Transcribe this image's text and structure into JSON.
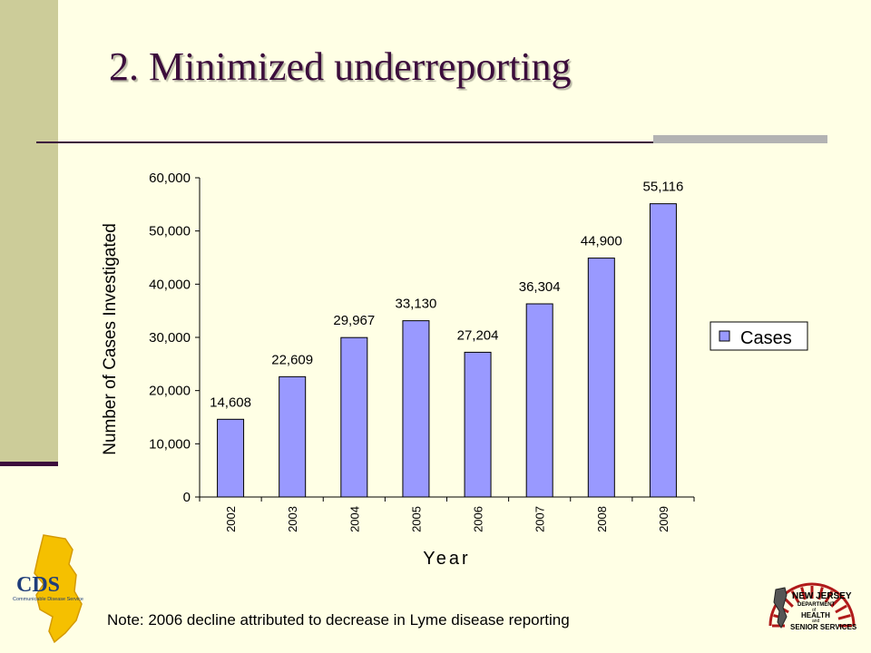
{
  "slide": {
    "title": "2. Minimized underreporting",
    "note": "Note: 2006 decline attributed to decrease in Lyme disease reporting",
    "colors": {
      "accent": "#3c0d3c",
      "sidebar": "#cccc99",
      "background": "#ffffe5",
      "bar": "#9999ff"
    }
  },
  "logos": {
    "cds": {
      "text": "CDS",
      "subtitle": "Communicable Disease Service",
      "icon": "new-jersey-map-icon"
    },
    "nj": {
      "line1": "NEW JERSEY",
      "line2": "DEPARTMENT",
      "line3": "of",
      "line4": "HEALTH",
      "line5": "and",
      "line6": "SENIOR SERVICES",
      "icon": "sunburst-seal-icon"
    }
  },
  "chart_data": {
    "type": "bar",
    "categories": [
      "2002",
      "2003",
      "2004",
      "2005",
      "2006",
      "2007",
      "2008",
      "2009"
    ],
    "series": [
      {
        "name": "Cases",
        "values": [
          14608,
          22609,
          29967,
          33130,
          27204,
          36304,
          44900,
          55116
        ]
      }
    ],
    "data_labels": [
      "14,608",
      "22,609",
      "29,967",
      "33,130",
      "27,204",
      "36,304",
      "44,900",
      "55,116"
    ],
    "title": "",
    "xlabel": "Year",
    "ylabel": "Number of Cases Investigated",
    "ylim": [
      0,
      60000
    ],
    "yticks": [
      0,
      10000,
      20000,
      30000,
      40000,
      50000,
      60000
    ],
    "ytick_labels": [
      "0",
      "10,000",
      "20,000",
      "30,000",
      "40,000",
      "50,000",
      "60,000"
    ],
    "grid": false,
    "legend": "right"
  }
}
